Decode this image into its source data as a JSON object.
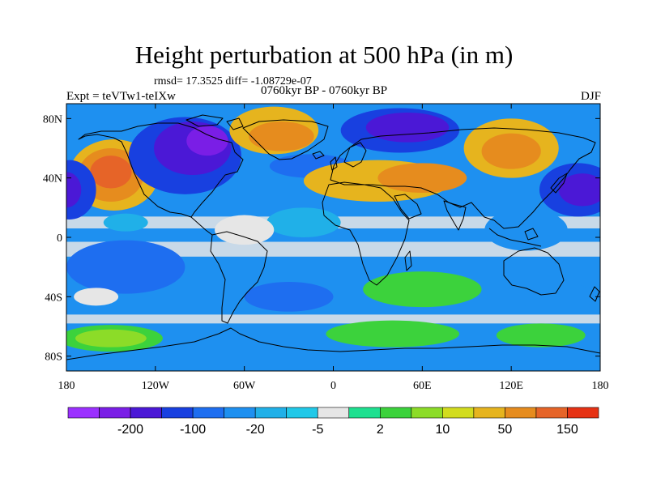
{
  "title": "Height perturbation at 500 hPa (in m)",
  "stats": "rmsd= 17.3525 diff= -1.08729e-07",
  "experiment": "Expt = teVTw1-teIXw",
  "period": "0760kyr BP - 0760kyr BP",
  "season": "DJF",
  "axes": {
    "x_ticks": [
      {
        "lon": -180,
        "label": "180"
      },
      {
        "lon": -120,
        "label": "120W"
      },
      {
        "lon": -60,
        "label": "60W"
      },
      {
        "lon": 0,
        "label": "0"
      },
      {
        "lon": 60,
        "label": "60E"
      },
      {
        "lon": 120,
        "label": "120E"
      },
      {
        "lon": 180,
        "label": "180"
      }
    ],
    "y_ticks": [
      {
        "lat": 80,
        "label": "80N"
      },
      {
        "lat": 40,
        "label": "40N"
      },
      {
        "lat": 0,
        "label": "0"
      },
      {
        "lat": -40,
        "label": "40S"
      },
      {
        "lat": -80,
        "label": "80S"
      }
    ],
    "lon_range": [
      -180,
      180
    ],
    "lat_range": [
      -90,
      90
    ]
  },
  "colorbar": {
    "colors": [
      "#9b30ff",
      "#7a1ee6",
      "#4b18d6",
      "#1840e0",
      "#1e6ef0",
      "#1e90f0",
      "#20b0e8",
      "#20c8e8",
      "#e6e6e6",
      "#1ee090",
      "#3cd23c",
      "#8cdc28",
      "#d2dc1e",
      "#e6b41e",
      "#e68c1e",
      "#e66428",
      "#e63214"
    ],
    "labels": [
      {
        "after_index": 1,
        "text": "-200"
      },
      {
        "after_index": 3,
        "text": "-100"
      },
      {
        "after_index": 5,
        "text": "-20"
      },
      {
        "after_index": 7,
        "text": "-5"
      },
      {
        "after_index": 9,
        "text": "2"
      },
      {
        "after_index": 11,
        "text": "10"
      },
      {
        "after_index": 13,
        "text": "50"
      },
      {
        "after_index": 15,
        "text": "150"
      }
    ]
  },
  "field_blobs": [
    {
      "lon": -148,
      "lat": 42,
      "rx": 30,
      "ry": 24,
      "level": 5
    },
    {
      "lon": -150,
      "lat": 42,
      "rx": 22,
      "ry": 18,
      "level": 6
    },
    {
      "lon": -150,
      "lat": 44,
      "rx": 14,
      "ry": 11,
      "level": 7
    },
    {
      "lon": -178,
      "lat": 32,
      "rx": 18,
      "ry": 20,
      "level": -5
    },
    {
      "lon": -180,
      "lat": 32,
      "rx": 10,
      "ry": 12,
      "level": -6
    },
    {
      "lon": -100,
      "lat": 55,
      "rx": 38,
      "ry": 26,
      "level": -5
    },
    {
      "lon": -95,
      "lat": 60,
      "rx": 26,
      "ry": 18,
      "level": -6
    },
    {
      "lon": -85,
      "lat": 65,
      "rx": 14,
      "ry": 10,
      "level": -7
    },
    {
      "lon": -40,
      "lat": 72,
      "rx": 30,
      "ry": 16,
      "level": 5
    },
    {
      "lon": -35,
      "lat": 68,
      "rx": 22,
      "ry": 10,
      "level": 6
    },
    {
      "lon": -15,
      "lat": 48,
      "rx": 28,
      "ry": 8,
      "level": -4
    },
    {
      "lon": 45,
      "lat": 72,
      "rx": 40,
      "ry": 15,
      "level": -5
    },
    {
      "lon": 50,
      "lat": 74,
      "rx": 28,
      "ry": 10,
      "level": -6
    },
    {
      "lon": 30,
      "lat": 38,
      "rx": 50,
      "ry": 14,
      "level": 5
    },
    {
      "lon": 60,
      "lat": 40,
      "rx": 30,
      "ry": 10,
      "level": 6
    },
    {
      "lon": 120,
      "lat": 60,
      "rx": 32,
      "ry": 20,
      "level": 5
    },
    {
      "lon": 120,
      "lat": 58,
      "rx": 20,
      "ry": 12,
      "level": 6
    },
    {
      "lon": 165,
      "lat": 32,
      "rx": 26,
      "ry": 18,
      "level": -5
    },
    {
      "lon": 168,
      "lat": 32,
      "rx": 16,
      "ry": 11,
      "level": -6
    },
    {
      "lon": -20,
      "lat": 10,
      "rx": 25,
      "ry": 10,
      "level": -2
    },
    {
      "lon": 130,
      "lat": 5,
      "rx": 28,
      "ry": 14,
      "level": -3
    },
    {
      "lon": -140,
      "lat": 10,
      "rx": 15,
      "ry": 6,
      "level": -2
    },
    {
      "lon": -60,
      "lat": 5,
      "rx": 20,
      "ry": 10,
      "level": 0
    },
    {
      "lon": -140,
      "lat": -20,
      "rx": 40,
      "ry": 18,
      "level": -4
    },
    {
      "lon": -30,
      "lat": -40,
      "rx": 30,
      "ry": 10,
      "level": -4
    },
    {
      "lon": 60,
      "lat": -35,
      "rx": 40,
      "ry": 12,
      "level": 2
    },
    {
      "lon": 150,
      "lat": -40,
      "rx": 26,
      "ry": 10,
      "level": -3
    },
    {
      "lon": -150,
      "lat": -68,
      "rx": 35,
      "ry": 9,
      "level": 2
    },
    {
      "lon": -150,
      "lat": -68,
      "rx": 24,
      "ry": 6,
      "level": 3
    },
    {
      "lon": 40,
      "lat": -65,
      "rx": 45,
      "ry": 9,
      "level": 2
    },
    {
      "lon": 140,
      "lat": -66,
      "rx": 30,
      "ry": 8,
      "level": 2
    },
    {
      "lon": -160,
      "lat": -40,
      "rx": 15,
      "ry": 6,
      "level": 0
    }
  ]
}
